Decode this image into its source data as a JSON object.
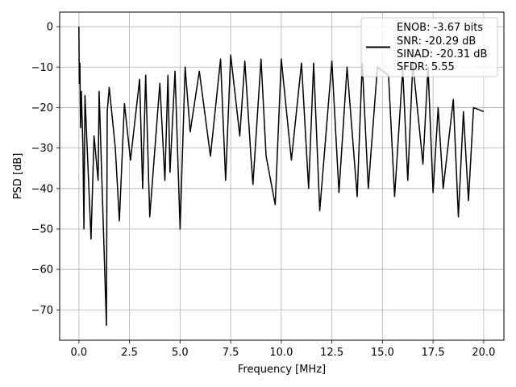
{
  "chart_data": {
    "type": "line",
    "title": "",
    "xlabel": "Frequency [MHz]",
    "ylabel": "PSD [dB]",
    "xlim": [
      -0.95,
      21.0
    ],
    "ylim": [
      -77.5,
      3.6
    ],
    "xticks": [
      0.0,
      2.5,
      5.0,
      7.5,
      10.0,
      12.5,
      15.0,
      17.5,
      20.0
    ],
    "xtick_labels": [
      "0.0",
      "2.5",
      "5.0",
      "7.5",
      "10.0",
      "12.5",
      "15.0",
      "17.5",
      "20.0"
    ],
    "yticks": [
      0,
      -10,
      -20,
      -30,
      -40,
      -50,
      -60,
      -70
    ],
    "ytick_labels": [
      "0",
      "−10",
      "−20",
      "−30",
      "−40",
      "−50",
      "−60",
      "−70"
    ],
    "grid": true,
    "legend_position": "top-right",
    "legend_lines": [
      "ENOB: -3.67 bits",
      "SNR: -20.29 dB",
      "SINAD: -20.31 dB",
      "SFDR: 5.55"
    ],
    "series": [
      {
        "color": "#000000",
        "x": [
          0.0,
          0.02,
          0.05,
          0.08,
          0.12,
          0.2,
          0.25,
          0.3,
          0.6,
          0.75,
          0.95,
          1.0,
          1.36,
          1.4,
          1.5,
          1.8,
          2.0,
          2.25,
          2.55,
          3.0,
          3.15,
          3.3,
          3.5,
          4.0,
          4.25,
          4.4,
          4.5,
          4.75,
          5.0,
          5.25,
          5.5,
          5.95,
          6.5,
          7.0,
          7.25,
          7.5,
          7.95,
          8.2,
          8.5,
          8.6,
          9.0,
          9.25,
          9.7,
          10.0,
          10.5,
          11.0,
          11.35,
          11.6,
          11.9,
          12.5,
          12.85,
          13.25,
          13.75,
          14.0,
          14.3,
          14.75,
          15.3,
          15.6,
          16.0,
          16.25,
          16.5,
          17.0,
          17.25,
          17.5,
          17.75,
          18.0,
          18.5,
          18.75,
          19.0,
          19.25,
          19.5,
          20.0
        ],
        "y": [
          0.0,
          -14.0,
          -9.0,
          -25.0,
          -16.0,
          -30.0,
          -50.0,
          -17.0,
          -52.5,
          -27.0,
          -38.0,
          -16.0,
          -73.8,
          -21.0,
          -15.0,
          -30.0,
          -48.0,
          -19.0,
          -33.0,
          -13.0,
          -40.0,
          -12.0,
          -47.0,
          -14.0,
          -38.0,
          -12.0,
          -36.0,
          -11.0,
          -50.0,
          -10.0,
          -26.0,
          -11.0,
          -32.0,
          -8.0,
          -38.0,
          -7.0,
          -27.0,
          -8.5,
          -32.0,
          -39.0,
          -8.0,
          -32.0,
          -44.0,
          -8.0,
          -33.0,
          -9.0,
          -40.0,
          -9.0,
          -45.5,
          -8.5,
          -41.0,
          -10.0,
          -42.0,
          -9.0,
          -40.0,
          -10.0,
          -12.0,
          -42.0,
          -10.5,
          -38.0,
          -9.0,
          -34.0,
          -10.0,
          -41.0,
          -20.0,
          -40.0,
          -18.0,
          -47.0,
          -21.0,
          -43.0,
          -20.0,
          -21.0
        ]
      }
    ]
  }
}
